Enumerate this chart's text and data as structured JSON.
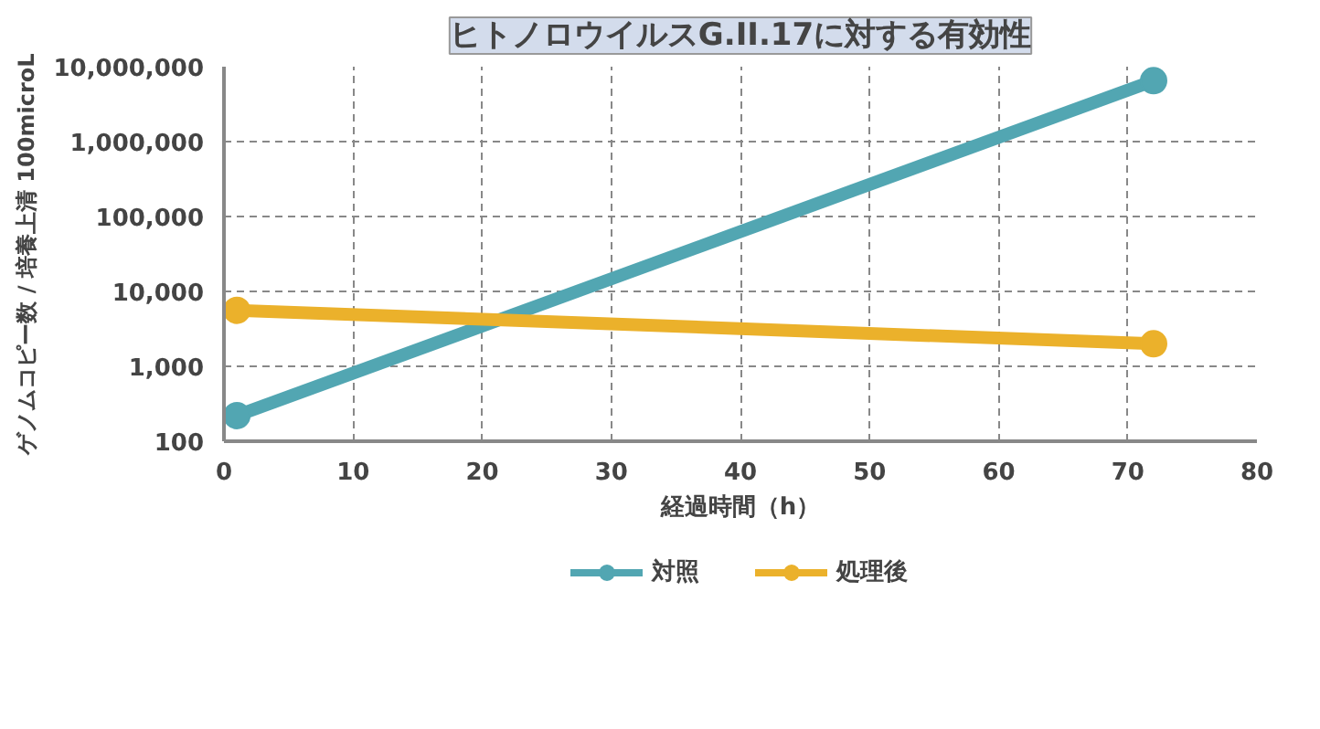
{
  "chart_data": {
    "type": "line",
    "title": "ヒトノロウイルスG.II.17に対する有効性",
    "xlabel": "経過時間（h）",
    "ylabel": "ゲノムコピー数 / 培養上清 100microL",
    "x": [
      1,
      72
    ],
    "series": [
      {
        "name": "対照",
        "color": "#52a6b2",
        "values": [
          220,
          6500000
        ]
      },
      {
        "name": "処理後",
        "color": "#ebb12b",
        "values": [
          5600,
          2000
        ]
      }
    ],
    "log": "y",
    "xlim": [
      0,
      80
    ],
    "xticks": [
      0,
      10,
      20,
      30,
      40,
      50,
      60,
      70,
      80
    ],
    "ylim": [
      100,
      10000000
    ],
    "yticks": [
      {
        "value": 100,
        "label": "100"
      },
      {
        "value": 1000,
        "label": "1,000"
      },
      {
        "value": 10000,
        "label": "10,000"
      },
      {
        "value": 100000,
        "label": "100,000"
      },
      {
        "value": 1000000,
        "label": "1,000,000"
      },
      {
        "value": 10000000,
        "label": "10,000,000"
      }
    ],
    "grid": true,
    "legend": "bottom",
    "marker": "circle",
    "line_style": "solid"
  }
}
